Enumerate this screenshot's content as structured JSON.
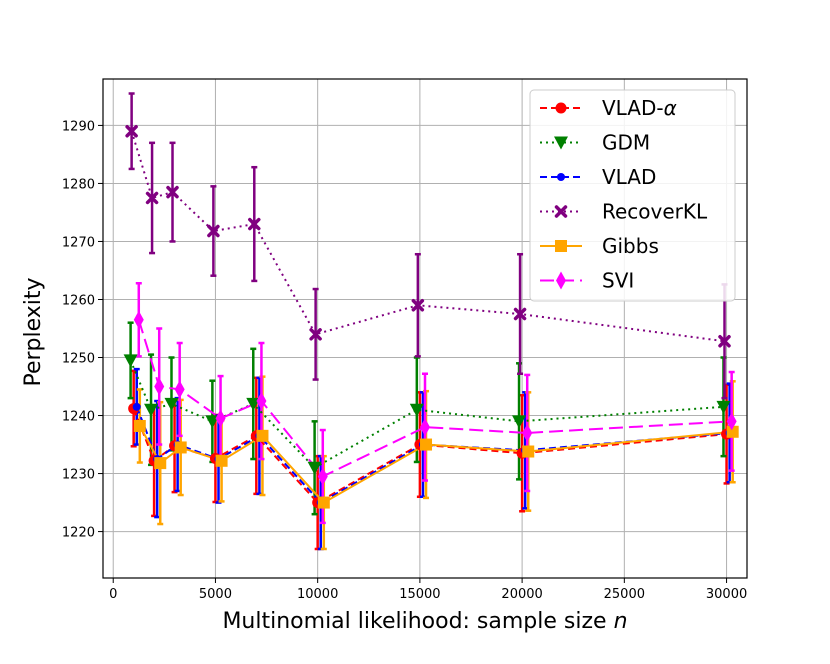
{
  "chart_data": {
    "type": "line",
    "title": "",
    "xlabel": "Multinomial likelihood: sample size",
    "xlabel_var": "n",
    "ylabel": "Perplexity",
    "xlim": [
      -500,
      31000
    ],
    "ylim": [
      1212,
      1298
    ],
    "xticks": [
      0,
      5000,
      10000,
      15000,
      20000,
      25000,
      30000
    ],
    "yticks": [
      1220,
      1230,
      1240,
      1250,
      1260,
      1270,
      1280,
      1290
    ],
    "grid": true,
    "legend_position": "top-right",
    "series": [
      {
        "name": "VLAD-α",
        "name_base": "VLAD-",
        "name_var": "α",
        "color": "#ff0000",
        "line": "dashed",
        "marker": "circle",
        "x": [
          1000,
          2000,
          3000,
          5000,
          7000,
          10000,
          15000,
          20000,
          30000
        ],
        "y": [
          1241.2,
          1232.2,
          1234.8,
          1232.6,
          1236.5,
          1225.0,
          1235.0,
          1233.5,
          1236.8
        ],
        "err": [
          6.5,
          9.5,
          8.0,
          7.5,
          10.0,
          8.0,
          9.0,
          10.0,
          8.5
        ]
      },
      {
        "name": "GDM",
        "color": "#008000",
        "line": "dotted",
        "marker": "triangle-down",
        "x": [
          1000,
          2000,
          3000,
          5000,
          7000,
          10000,
          15000,
          20000,
          30000
        ],
        "y": [
          1249.5,
          1241.0,
          1242.0,
          1239.0,
          1242.0,
          1231.0,
          1241.0,
          1239.0,
          1241.5
        ],
        "err": [
          6.5,
          9.5,
          8.0,
          7.0,
          9.5,
          8.0,
          9.0,
          10.0,
          8.5
        ]
      },
      {
        "name": "VLAD",
        "color": "#0000ff",
        "line": "dashed",
        "marker": "circle-small",
        "x": [
          1000,
          2000,
          3000,
          5000,
          7000,
          10000,
          15000,
          20000,
          30000
        ],
        "y": [
          1241.5,
          1232.5,
          1235.0,
          1232.5,
          1236.5,
          1225.0,
          1235.0,
          1234.0,
          1237.0
        ],
        "err": [
          6.5,
          10.0,
          8.0,
          7.5,
          10.0,
          8.0,
          9.0,
          10.0,
          8.5
        ]
      },
      {
        "name": "RecoverKL",
        "color": "#800080",
        "line": "dotted",
        "marker": "x",
        "x": [
          1000,
          2000,
          3000,
          5000,
          7000,
          10000,
          15000,
          20000,
          30000
        ],
        "y": [
          1289.0,
          1277.5,
          1278.5,
          1271.8,
          1273.0,
          1254.0,
          1259.0,
          1257.5,
          1252.8
        ],
        "err": [
          6.5,
          9.5,
          8.5,
          7.7,
          9.8,
          7.8,
          8.8,
          10.3,
          9.8
        ]
      },
      {
        "name": "Gibbs",
        "color": "#ffa500",
        "line": "solid",
        "marker": "square",
        "x": [
          1000,
          2000,
          3000,
          5000,
          7000,
          10000,
          15000,
          20000,
          30000
        ],
        "y": [
          1238.2,
          1231.8,
          1234.5,
          1232.2,
          1236.5,
          1225.0,
          1235.0,
          1233.8,
          1237.2
        ],
        "err": [
          6.3,
          10.5,
          8.2,
          7.0,
          10.2,
          8.0,
          9.2,
          10.2,
          8.7
        ]
      },
      {
        "name": "SVI",
        "color": "#ff00ff",
        "line": "long-dashed",
        "marker": "diamond",
        "x": [
          1000,
          2000,
          3000,
          5000,
          7000,
          10000,
          15000,
          20000,
          30000
        ],
        "y": [
          1256.5,
          1245.0,
          1244.5,
          1239.5,
          1242.5,
          1229.5,
          1238.0,
          1237.0,
          1239.0
        ],
        "err": [
          6.3,
          10.0,
          8.0,
          7.3,
          10.0,
          8.0,
          9.2,
          10.0,
          8.5
        ]
      }
    ]
  }
}
